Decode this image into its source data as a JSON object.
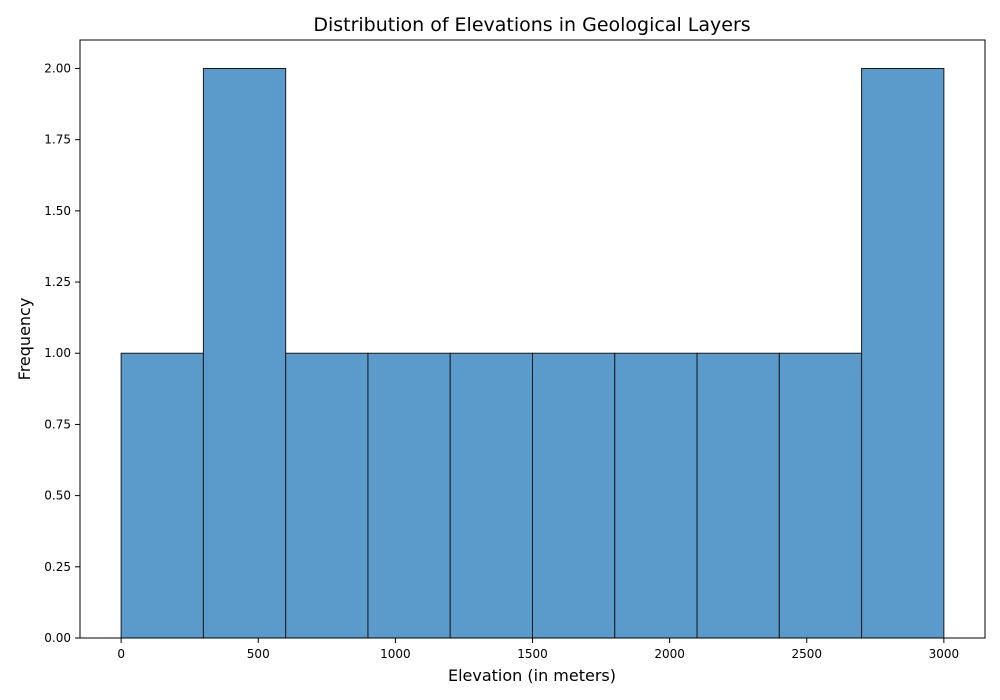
{
  "chart_data": {
    "type": "bar",
    "subtype": "histogram",
    "title": "Distribution of Elevations in Geological Layers",
    "xlabel": "Elevation (in meters)",
    "ylabel": "Frequency",
    "bin_edges": [
      0,
      300,
      600,
      900,
      1200,
      1500,
      1800,
      2100,
      2400,
      2700,
      3000
    ],
    "values": [
      1,
      2,
      1,
      1,
      1,
      1,
      1,
      1,
      1,
      2
    ],
    "xlim": [
      -150,
      3150
    ],
    "ylim": [
      0,
      2.1
    ],
    "x_ticks": [
      0,
      500,
      1000,
      1500,
      2000,
      2500,
      3000
    ],
    "y_ticks": [
      0,
      0.25,
      0.5,
      0.75,
      1.0,
      1.25,
      1.5,
      1.75,
      2.0
    ],
    "y_tick_labels": [
      "0.00",
      "0.25",
      "0.50",
      "0.75",
      "1.00",
      "1.25",
      "1.50",
      "1.75",
      "2.00"
    ],
    "grid": false,
    "bar_color": "#5b9bcb",
    "edge_color": "#1a1a1a"
  }
}
